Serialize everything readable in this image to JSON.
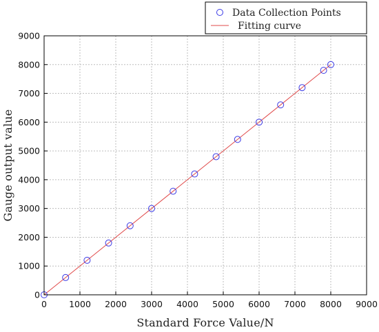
{
  "colors": {
    "points": "#3a3ae6",
    "fit_line": "#e04a4a",
    "grid": "#bdbdbd",
    "axis": "#000000"
  },
  "chart_data": {
    "type": "scatter",
    "title": "",
    "xlabel": "Standard Force Value/N",
    "ylabel": "Gauge output value",
    "xlim": [
      0,
      9000
    ],
    "ylim": [
      0,
      9000
    ],
    "xticks": [
      0,
      1000,
      2000,
      3000,
      4000,
      5000,
      6000,
      7000,
      8000,
      9000
    ],
    "yticks": [
      0,
      1000,
      2000,
      3000,
      4000,
      5000,
      6000,
      7000,
      8000,
      9000
    ],
    "grid": true,
    "legend_position": "top-right",
    "series": [
      {
        "name": "Data Collection Points",
        "style": "markers",
        "x": [
          0,
          600,
          1200,
          1800,
          2400,
          3000,
          3600,
          4200,
          4800,
          5400,
          6000,
          6600,
          7200,
          7800,
          8000
        ],
        "y": [
          0,
          600,
          1200,
          1800,
          2400,
          3000,
          3600,
          4200,
          4800,
          5400,
          6000,
          6600,
          7200,
          7800,
          8000
        ]
      },
      {
        "name": "Fitting curve",
        "style": "line",
        "x": [
          0,
          8000
        ],
        "y": [
          0,
          8000
        ]
      }
    ]
  }
}
